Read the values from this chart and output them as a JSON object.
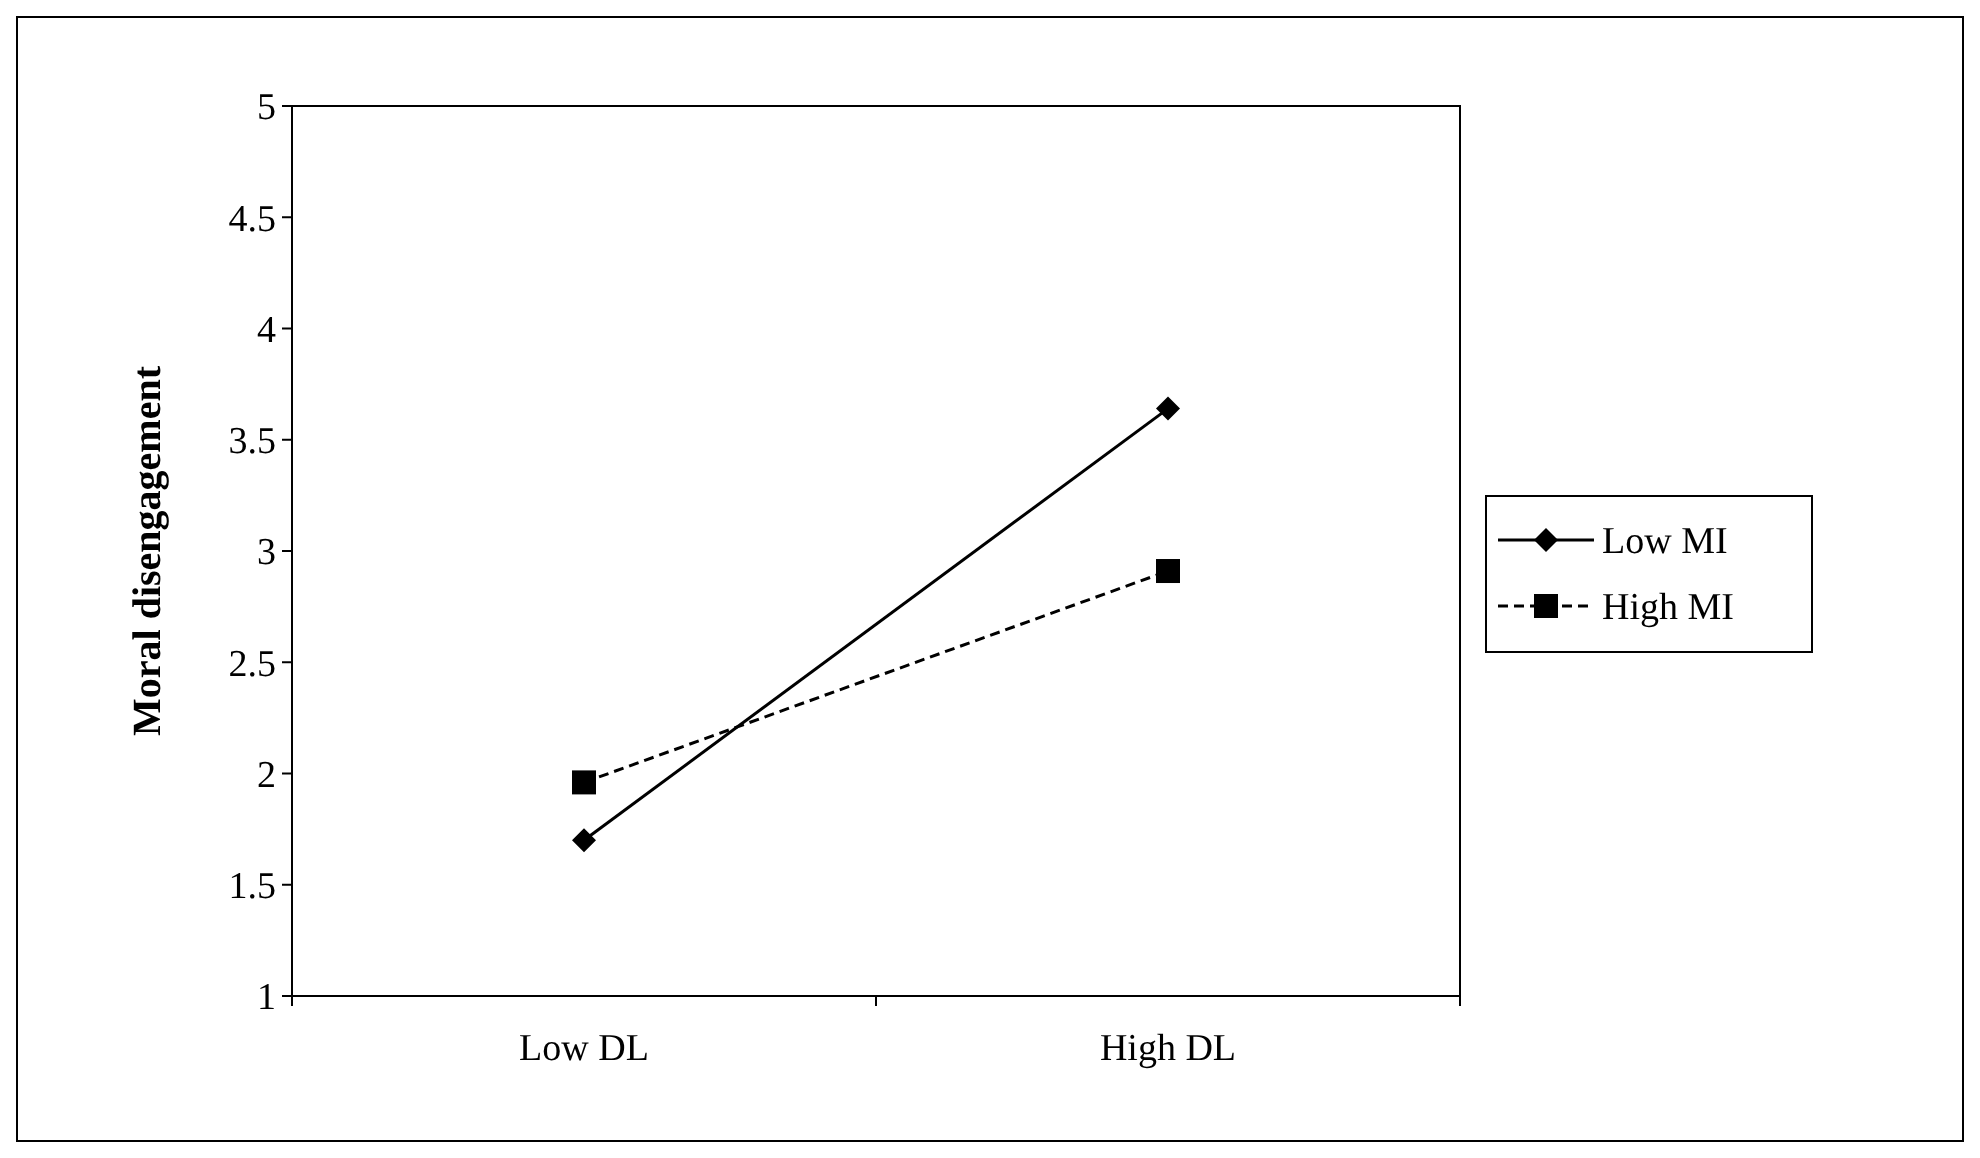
{
  "chart_data": {
    "type": "line",
    "ylabel": "Moral disengagement",
    "categories": [
      "Low DL",
      "High DL"
    ],
    "series": [
      {
        "name": "Low MI",
        "color": "#000000",
        "values": [
          1.7,
          3.64
        ],
        "marker": "diamond",
        "line_style": "solid"
      },
      {
        "name": "High MI",
        "color": "#000000",
        "values": [
          1.96,
          2.91
        ],
        "marker": "square",
        "line_style": "dashed"
      }
    ],
    "ylim": [
      1,
      5
    ],
    "yticks": [
      1,
      1.5,
      2,
      2.5,
      3,
      3.5,
      4,
      4.5,
      5
    ],
    "grid": false,
    "legend": "right"
  }
}
